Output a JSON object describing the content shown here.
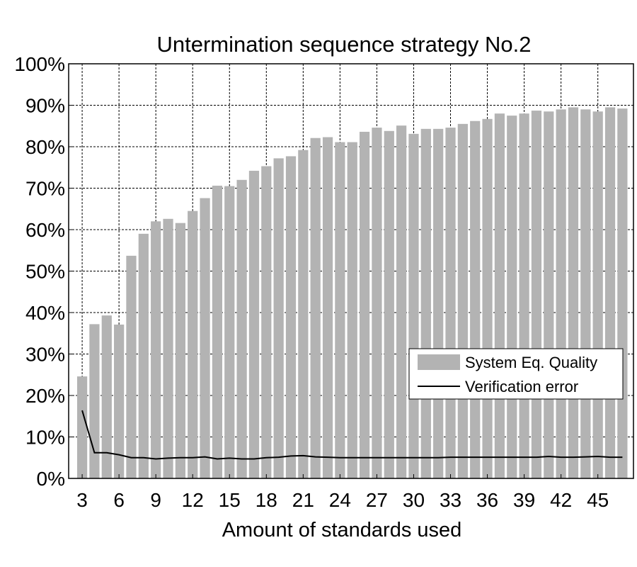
{
  "chart_data": {
    "type": "bar",
    "title": "Untermination sequence strategy No.2",
    "xlabel": "Amount of standards used",
    "ylabel": "",
    "x": [
      3,
      4,
      5,
      6,
      7,
      8,
      9,
      10,
      11,
      12,
      13,
      14,
      15,
      16,
      17,
      18,
      19,
      20,
      21,
      22,
      23,
      24,
      25,
      26,
      27,
      28,
      29,
      30,
      31,
      32,
      33,
      34,
      35,
      36,
      37,
      38,
      39,
      40,
      41,
      42,
      43,
      44,
      45,
      46,
      47
    ],
    "xticks": [
      3,
      6,
      9,
      12,
      15,
      18,
      21,
      24,
      27,
      30,
      33,
      36,
      39,
      42,
      45
    ],
    "xlim": [
      1.9,
      47.9
    ],
    "ylim": [
      0,
      100
    ],
    "yticks": [
      0,
      10,
      20,
      30,
      40,
      50,
      60,
      70,
      80,
      90,
      100
    ],
    "ytick_format": "%",
    "grid": true,
    "legend_position": "center-right",
    "series": [
      {
        "name": "System Eq. Quality",
        "type": "bar",
        "color": "#b3b3b3",
        "values": [
          24.6,
          37.2,
          39.3,
          37.1,
          53.7,
          59.0,
          62.0,
          62.6,
          61.6,
          64.5,
          67.6,
          70.6,
          70.5,
          72.0,
          74.2,
          75.3,
          77.2,
          77.7,
          79.2,
          82.1,
          82.3,
          81.1,
          81.1,
          83.6,
          84.6,
          83.8,
          85.1,
          83.1,
          84.3,
          84.3,
          84.6,
          85.5,
          86.2,
          86.7,
          88.0,
          87.5,
          88.0,
          88.7,
          88.5,
          89.0,
          89.5,
          89.0,
          88.5,
          89.5,
          89.2
        ]
      },
      {
        "name": "Verification error",
        "type": "line",
        "color": "#000000",
        "values": [
          16.4,
          6.2,
          6.2,
          5.7,
          5.0,
          5.0,
          4.7,
          4.9,
          5.0,
          5.0,
          5.2,
          4.7,
          4.9,
          4.7,
          4.7,
          5.0,
          5.1,
          5.4,
          5.5,
          5.2,
          5.1,
          5.0,
          5.0,
          5.0,
          5.0,
          5.0,
          5.0,
          5.0,
          5.0,
          5.0,
          5.1,
          5.1,
          5.1,
          5.1,
          5.1,
          5.1,
          5.1,
          5.1,
          5.3,
          5.1,
          5.1,
          5.2,
          5.3,
          5.1,
          5.1
        ]
      }
    ]
  }
}
